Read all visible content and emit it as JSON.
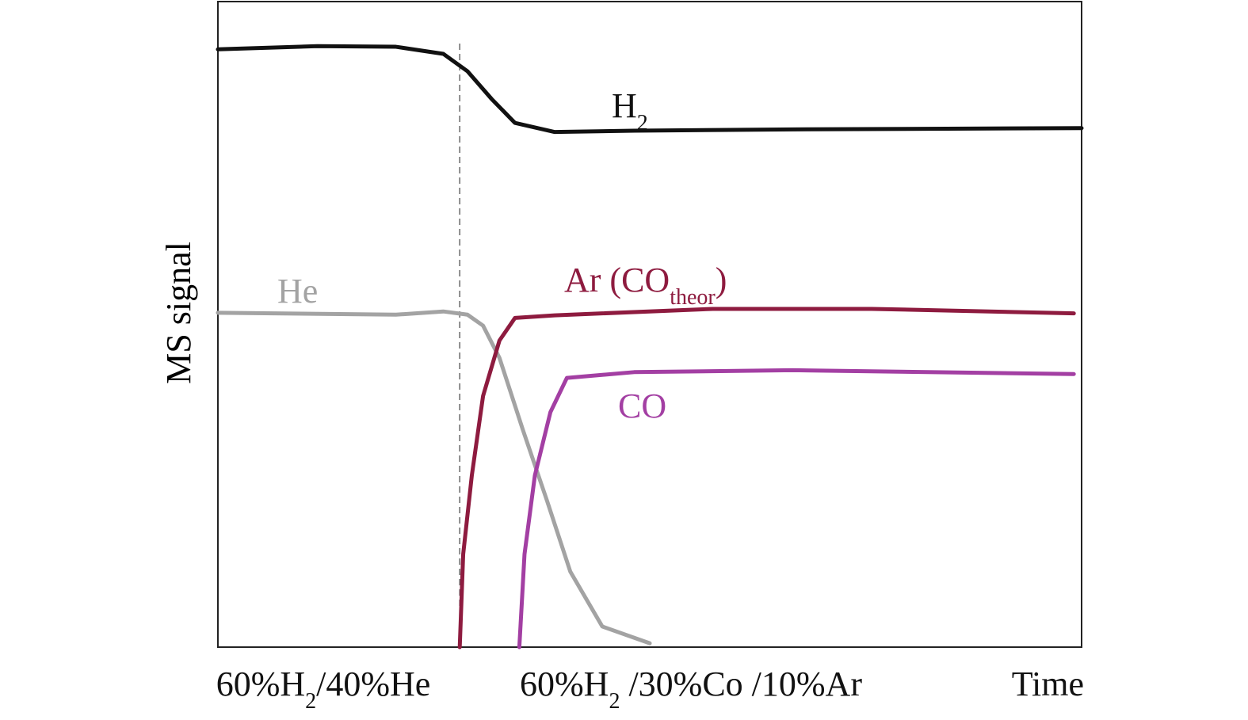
{
  "chart_data": {
    "type": "line",
    "y_label": "MS signal",
    "xlim": [
      0,
      100
    ],
    "ylim": [
      0,
      100
    ],
    "switch_x": 28.0,
    "x_labels": [
      [
        {
          "t": "60%H"
        },
        {
          "t": "2",
          "sub": true
        },
        {
          "t": "/40%He"
        }
      ],
      [
        {
          "t": "60%H"
        },
        {
          "t": "2",
          "sub": true
        },
        {
          "t": " /30%Co /10%Ar"
        }
      ],
      [
        {
          "t": "Time"
        }
      ]
    ],
    "series": [
      {
        "name": [
          {
            "t": "H"
          },
          {
            "t": "2",
            "sub": true
          }
        ],
        "color": "#111111",
        "x": [
          0,
          11.5,
          20.6,
          26.1,
          28.9,
          31.7,
          34.4,
          39.0,
          48.2,
          66.5,
          100
        ],
        "values": [
          92.6,
          93.1,
          93.0,
          91.9,
          89.2,
          84.9,
          81.2,
          79.8,
          80.0,
          80.2,
          80.4
        ]
      },
      {
        "name": [
          {
            "t": "He"
          }
        ],
        "color": "#a3a3a3",
        "x": [
          0,
          20.6,
          26.1,
          28.9,
          30.7,
          32.6,
          35.3,
          38.1,
          40.8,
          44.5,
          50.0
        ],
        "values": [
          51.8,
          51.5,
          52.0,
          51.5,
          49.8,
          44.8,
          33.7,
          22.7,
          11.7,
          3.2,
          0.6
        ]
      },
      {
        "name": [
          {
            "t": "Ar (CO"
          },
          {
            "t": "theor",
            "sub": true
          },
          {
            "t": ")"
          }
        ],
        "color": "#8e1b3f",
        "x": [
          28.0,
          28.4,
          29.4,
          30.7,
          32.6,
          34.4,
          39.0,
          57.3,
          75.7,
          99.1
        ],
        "values": [
          0,
          14.4,
          26.6,
          38.9,
          47.5,
          51.0,
          51.4,
          52.4,
          52.4,
          51.7
        ]
      },
      {
        "name": [
          {
            "t": "CO"
          }
        ],
        "color": "#a33fa3",
        "x": [
          34.9,
          35.5,
          36.7,
          38.5,
          40.4,
          48.2,
          66.5,
          99.1
        ],
        "values": [
          0,
          14.4,
          26.6,
          36.4,
          41.7,
          42.6,
          42.9,
          42.3
        ]
      }
    ]
  }
}
